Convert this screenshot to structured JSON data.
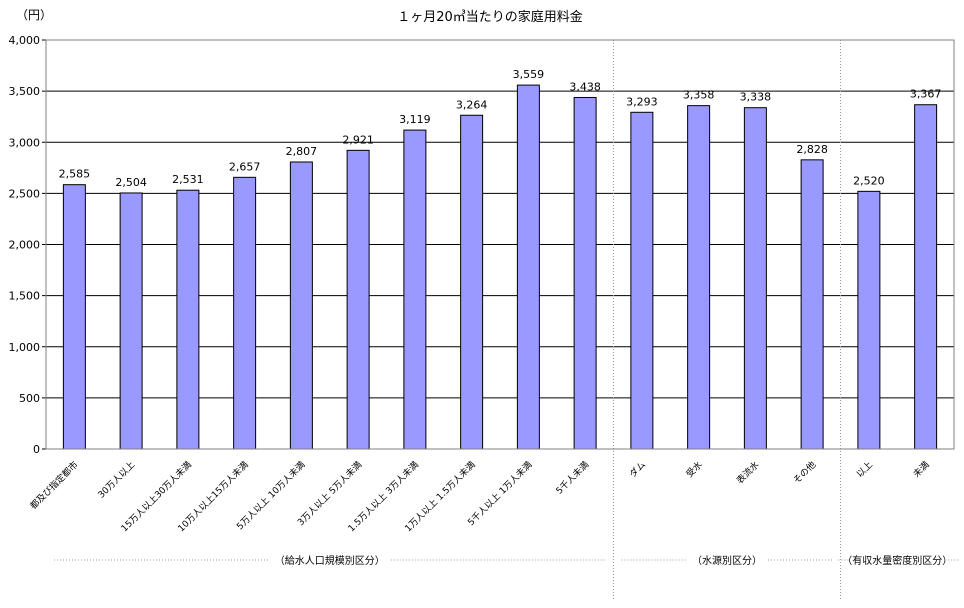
{
  "chart_data": {
    "type": "bar",
    "title": "１ヶ月20㎥当たりの家庭用料金",
    "ylabel": "（円）",
    "xlabel": "",
    "ylim": [
      0,
      4000
    ],
    "yticks": [
      0,
      500,
      1000,
      1500,
      2000,
      2500,
      3000,
      3500,
      4000
    ],
    "ytick_labels": [
      "0",
      "500",
      "1,000",
      "1,500",
      "2,000",
      "2,500",
      "3,000",
      "3,500",
      "4,000"
    ],
    "grid": true,
    "legend": "none",
    "colors": {
      "bar": "#9999ff",
      "bar_edge": "#000000"
    },
    "categories": [
      "都及び指定都市",
      "30万人以上",
      "15万人以上30万人未満",
      "10万人以上15万人未満",
      "5万人以上 10万人未満",
      "3万人以上 5万人未満",
      "1.5万人以上 3万人未満",
      "1万人以上 1.5万人未満",
      "5千人以上 1万人未満",
      "5千人未満",
      "ダム",
      "受水",
      "表流水",
      "その他",
      "以上",
      "未満"
    ],
    "values": [
      2585,
      2504,
      2531,
      2657,
      2807,
      2921,
      3119,
      3264,
      3559,
      3438,
      3293,
      3358,
      3338,
      2828,
      2520,
      3367
    ],
    "value_labels": [
      "2,585",
      "2,504",
      "2,531",
      "2,657",
      "2,807",
      "2,921",
      "3,119",
      "3,264",
      "3,559",
      "3,438",
      "3,293",
      "3,358",
      "3,338",
      "2,828",
      "2,520",
      "3,367"
    ],
    "groups": [
      {
        "label": "（給水人口規模別区分）",
        "start": 0,
        "end": 9
      },
      {
        "label": "（水源別区分）",
        "start": 10,
        "end": 13
      },
      {
        "label": "（有収水量密度別区分）",
        "start": 14,
        "end": 15
      }
    ]
  }
}
